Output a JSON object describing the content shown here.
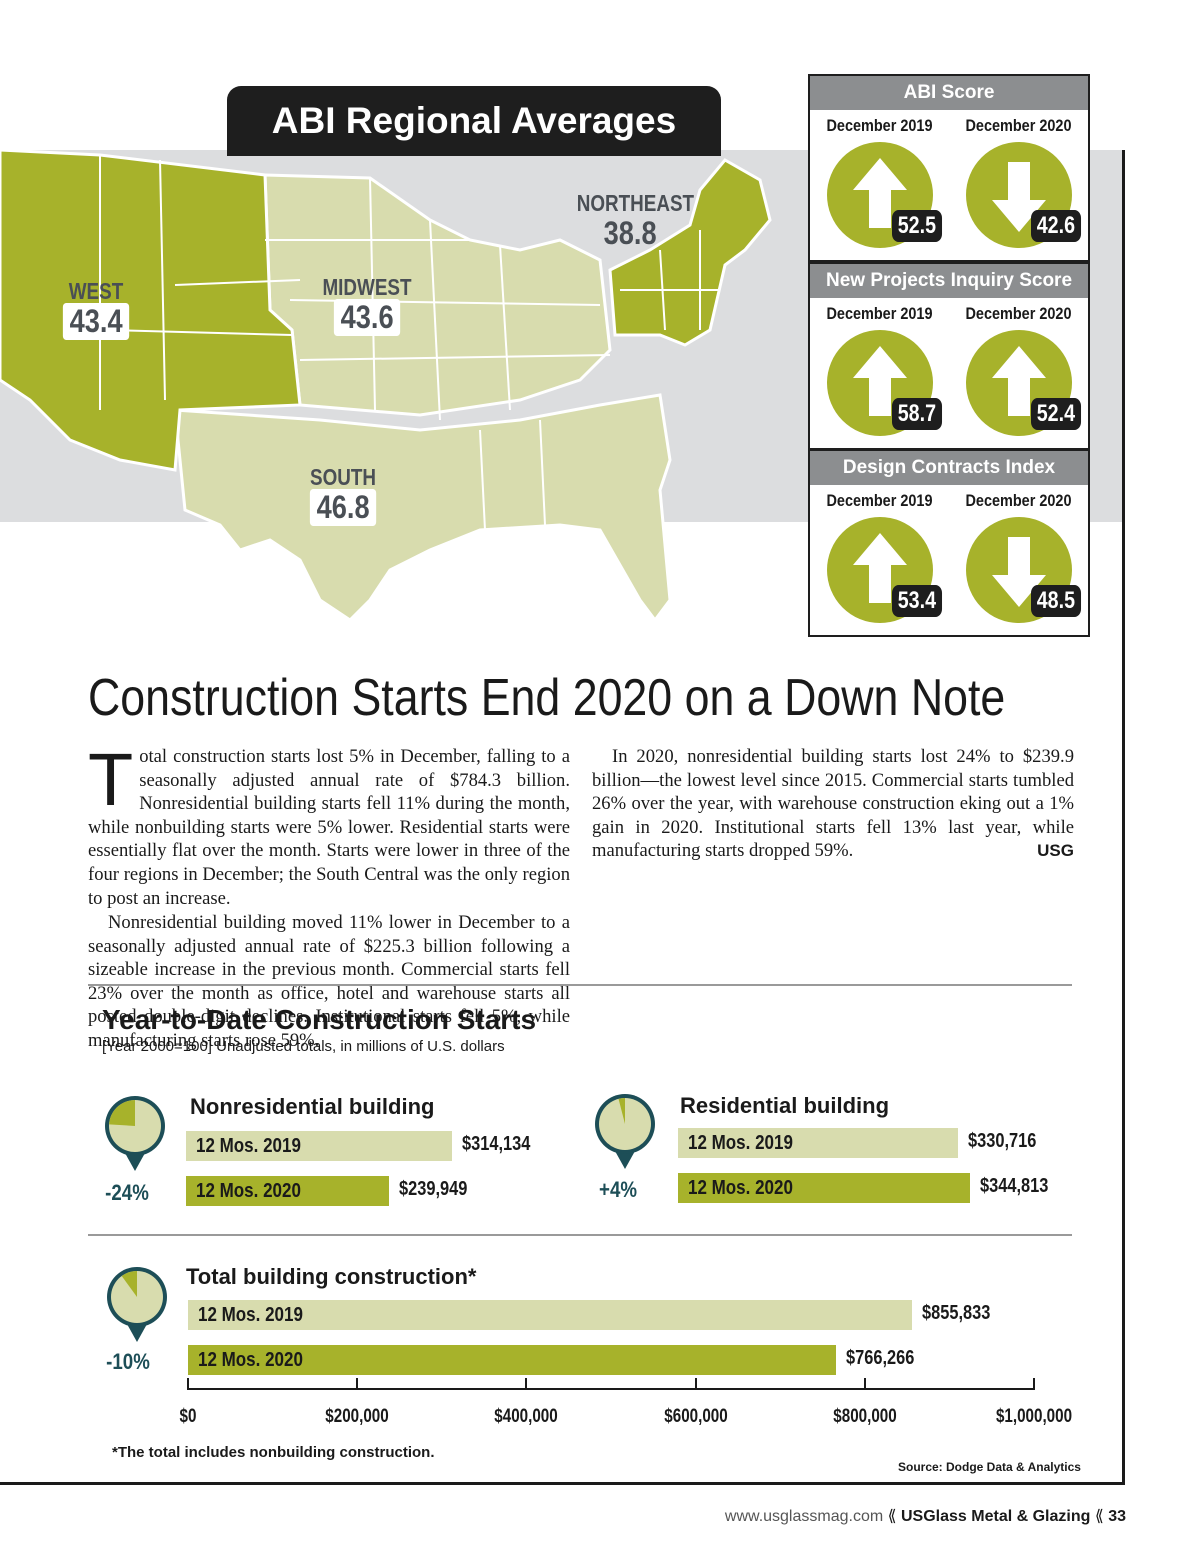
{
  "map": {
    "title": "ABI Regional Averages",
    "regions": [
      {
        "name": "WEST",
        "value": "43.4"
      },
      {
        "name": "MIDWEST",
        "value": "43.6"
      },
      {
        "name": "NORTHEAST",
        "value": "38.8"
      },
      {
        "name": "SOUTH",
        "value": "46.8"
      }
    ]
  },
  "scores": [
    {
      "title": "ABI Score",
      "col1": "December 2019",
      "col2": "December 2020",
      "v1": "52.5",
      "d1": "up",
      "v2": "42.6",
      "d2": "down"
    },
    {
      "title": "New Projects Inquiry Score",
      "col1": "December 2019",
      "col2": "December 2020",
      "v1": "58.7",
      "d1": "up",
      "v2": "52.4",
      "d2": "up"
    },
    {
      "title": "Design Contracts Index",
      "col1": "December 2019",
      "col2": "December 2020",
      "v1": "53.4",
      "d1": "up",
      "v2": "48.5",
      "d2": "down"
    }
  ],
  "article": {
    "headline": "Construction Starts End 2020 on a Down Note",
    "dropcap": "T",
    "p1": "otal construction starts lost 5% in December, falling to a seasonally adjusted annual rate of $784.3 billion. Nonresidential building starts fell 11% during the month, while nonbuilding starts were 5% lower. Residential starts were essentially flat over the month. Starts were lower in three of the four regions in December; the South Central was the only region to post an increase.",
    "p2": "Nonresidential building moved 11% lower in December to a seasonally adjusted annual rate of $225.3 billion following a sizeable increase in the previous month. Commercial starts fell 23% over the month as office, hotel and warehouse starts all posted double-digit declines. Institutional starts fell 5%, while manufacturing starts rose 59%.",
    "p3": "In 2020, nonresidential building starts lost 24% to $239.9 billion—the lowest level since 2015. Commercial starts tumbled 26% over the year, with warehouse construction eking out a 1% gain in 2020. Institutional starts fell 13% last year, while manufacturing starts dropped 59%.",
    "signature": "USG"
  },
  "chart_data": {
    "type": "bar",
    "title": "Year-to-Date Construction Starts",
    "subtitle": "[Year 2000=100] Unadjusted totals, in millions of U.S. dollars",
    "xlim": [
      0,
      1000000
    ],
    "x_ticks": [
      "$0",
      "$200,000",
      "$400,000",
      "$600,000",
      "$800,000",
      "$1,000,000"
    ],
    "groups": [
      {
        "name": "Nonresidential building",
        "change": "-24%",
        "bars": [
          {
            "label": "12 Mos. 2019",
            "value": 314134,
            "display": "$314,134"
          },
          {
            "label": "12 Mos. 2020",
            "value": 239949,
            "display": "$239,949"
          }
        ]
      },
      {
        "name": "Residential building",
        "change": "+4%",
        "bars": [
          {
            "label": "12 Mos. 2019",
            "value": 330716,
            "display": "$330,716"
          },
          {
            "label": "12 Mos. 2020",
            "value": 344813,
            "display": "$344,813"
          }
        ]
      },
      {
        "name": "Total building construction*",
        "change": "-10%",
        "bars": [
          {
            "label": "12 Mos. 2019",
            "value": 855833,
            "display": "$855,833"
          },
          {
            "label": "12 Mos. 2020",
            "value": 766266,
            "display": "$766,266"
          }
        ]
      }
    ],
    "footnote": "*The total includes nonbuilding construction.",
    "source": "Source: Dodge Data & Analytics"
  },
  "colors": {
    "dark_olive": "#a7b22b",
    "light_olive": "#d8dcae",
    "mid_olive": "#c9cf8f",
    "map_gray": "#dcdddf",
    "teal": "#1d4e57"
  },
  "folio": {
    "url": "www.usglassmag.com",
    "sep": "⟪",
    "magazine": "USGlass Metal & Glazing",
    "page": "33"
  }
}
